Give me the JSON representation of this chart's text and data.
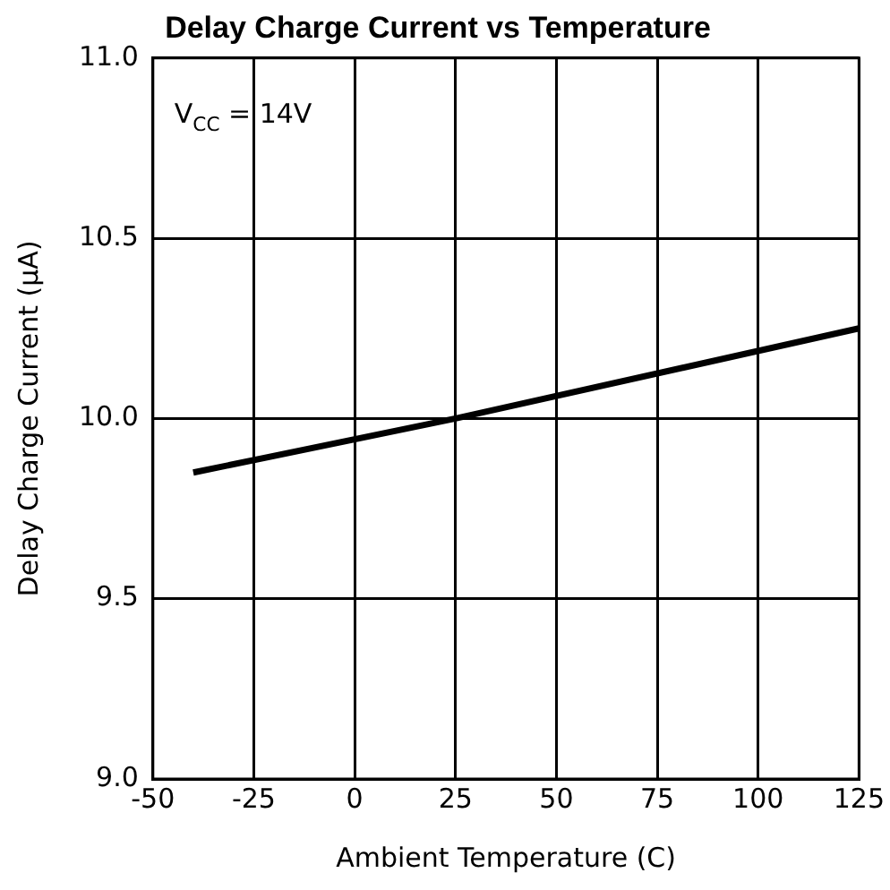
{
  "chart_data": {
    "type": "line",
    "title": "Delay Charge Current vs Temperature",
    "xlabel": "Ambient Temperature (C)",
    "ylabel": "Delay Charge Current (μA)",
    "annotations": [
      "V$_{CC}$ = 14V"
    ],
    "x": [
      -40,
      25,
      125
    ],
    "series": [
      {
        "color": "#000000",
        "values": [
          9.85,
          10.0,
          10.25
        ]
      }
    ],
    "xlim": [
      -50,
      125
    ],
    "xticks": [
      -50,
      -25,
      0,
      25,
      50,
      75,
      100,
      125
    ],
    "ylim": [
      9,
      11
    ],
    "yticks": [
      {
        "value": 9,
        "label": "9.0"
      },
      9.5,
      {
        "value": 10,
        "label": "10.0"
      },
      10.5,
      {
        "value": 11,
        "label": "11.0"
      }
    ],
    "grid": true,
    "marker": "none",
    "line_style": "solid"
  }
}
